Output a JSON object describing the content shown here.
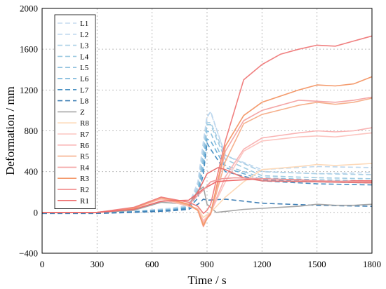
{
  "chart_data": {
    "type": "line",
    "title": "",
    "xlabel": "Time / s",
    "ylabel": "Deformation / mm",
    "xlim": [
      0,
      1800
    ],
    "ylim": [
      -400,
      2000
    ],
    "xticks": [
      "0",
      "300",
      "600",
      "900",
      "1200",
      "1500",
      "1800"
    ],
    "yticks": [
      "2000",
      "1600",
      "1200",
      "800",
      "400",
      "0",
      "−400"
    ],
    "grid": true,
    "legend_position": "top-left",
    "series": [
      {
        "name": "L1",
        "color": "#c6dbef",
        "dash": "dash",
        "x": [
          0,
          300,
          500,
          700,
          800,
          850,
          880,
          900,
          920,
          1000,
          1200,
          1500,
          1800
        ],
        "y": [
          -5,
          -5,
          10,
          40,
          70,
          300,
          700,
          950,
          980,
          560,
          400,
          380,
          390
        ]
      },
      {
        "name": "L2",
        "color": "#bdd7ee",
        "dash": "dash",
        "x": [
          0,
          300,
          500,
          700,
          800,
          850,
          880,
          900,
          920,
          1000,
          1200,
          1500,
          1800
        ],
        "y": [
          -5,
          -5,
          10,
          40,
          60,
          280,
          650,
          930,
          990,
          560,
          420,
          450,
          440
        ]
      },
      {
        "name": "L3",
        "color": "#abd0e6",
        "dash": "dash",
        "x": [
          0,
          300,
          500,
          700,
          800,
          850,
          880,
          900,
          920,
          1000,
          1200,
          1500,
          1800
        ],
        "y": [
          -5,
          -5,
          10,
          30,
          60,
          250,
          600,
          880,
          880,
          560,
          400,
          380,
          370
        ]
      },
      {
        "name": "L4",
        "color": "#9ecae1",
        "dash": "dash",
        "x": [
          0,
          300,
          500,
          700,
          800,
          850,
          880,
          900,
          920,
          1000,
          1200,
          1500,
          1800
        ],
        "y": [
          -5,
          -5,
          10,
          30,
          55,
          220,
          560,
          860,
          860,
          520,
          360,
          340,
          330
        ]
      },
      {
        "name": "L5",
        "color": "#8fc1de",
        "dash": "dash",
        "x": [
          0,
          300,
          500,
          700,
          800,
          850,
          880,
          900,
          920,
          1000,
          1200,
          1500,
          1800
        ],
        "y": [
          -5,
          -5,
          10,
          30,
          50,
          200,
          520,
          800,
          780,
          460,
          340,
          320,
          310
        ]
      },
      {
        "name": "L6",
        "color": "#6baed6",
        "dash": "dash",
        "x": [
          0,
          300,
          500,
          700,
          800,
          850,
          880,
          900,
          920,
          1000,
          1200,
          1500,
          1800
        ],
        "y": [
          -5,
          -5,
          5,
          25,
          50,
          180,
          450,
          720,
          700,
          440,
          320,
          300,
          290
        ]
      },
      {
        "name": "L7",
        "color": "#4a90c2",
        "dash": "dash",
        "x": [
          0,
          300,
          500,
          700,
          800,
          850,
          880,
          900,
          920,
          1000,
          1200,
          1500,
          1800
        ],
        "y": [
          -5,
          -5,
          5,
          20,
          40,
          140,
          380,
          680,
          620,
          400,
          310,
          280,
          270
        ]
      },
      {
        "name": "L8",
        "color": "#3f7fb5",
        "dash": "dash",
        "x": [
          0,
          300,
          500,
          700,
          800,
          850,
          880,
          900,
          1000,
          1200,
          1500,
          1800
        ],
        "y": [
          -10,
          -10,
          0,
          15,
          30,
          80,
          130,
          120,
          130,
          90,
          70,
          60
        ]
      },
      {
        "name": "Z",
        "color": "#a6a6a6",
        "dash": "solid",
        "x": [
          0,
          300,
          500,
          650,
          800,
          850,
          880,
          900,
          950,
          1000,
          1100,
          1200,
          1400,
          1500,
          1600,
          1700,
          1800
        ],
        "y": [
          0,
          0,
          20,
          100,
          80,
          210,
          250,
          80,
          0,
          10,
          30,
          40,
          60,
          80,
          70,
          70,
          80
        ]
      },
      {
        "name": "R8",
        "color": "#fdd9b8",
        "dash": "solid",
        "x": [
          0,
          300,
          500,
          650,
          800,
          850,
          880,
          900,
          920,
          1000,
          1100,
          1200,
          1400,
          1500,
          1600,
          1700,
          1800
        ],
        "y": [
          0,
          0,
          40,
          130,
          60,
          40,
          -50,
          -20,
          0,
          150,
          300,
          420,
          450,
          470,
          460,
          470,
          480
        ]
      },
      {
        "name": "R7",
        "color": "#fcc5c0",
        "dash": "solid",
        "x": [
          0,
          300,
          500,
          650,
          800,
          850,
          880,
          900,
          920,
          1000,
          1100,
          1200,
          1400,
          1500,
          1600,
          1700,
          1800
        ],
        "y": [
          0,
          0,
          40,
          130,
          60,
          30,
          -80,
          -40,
          0,
          300,
          600,
          700,
          740,
          750,
          740,
          760,
          780
        ]
      },
      {
        "name": "R6",
        "color": "#f9b3b3",
        "dash": "solid",
        "x": [
          0,
          300,
          500,
          650,
          800,
          850,
          880,
          900,
          920,
          1000,
          1100,
          1200,
          1400,
          1500,
          1600,
          1700,
          1800
        ],
        "y": [
          0,
          0,
          40,
          140,
          70,
          30,
          -100,
          -50,
          0,
          350,
          620,
          730,
          780,
          800,
          790,
          800,
          830
        ]
      },
      {
        "name": "R5",
        "color": "#f6b08c",
        "dash": "solid",
        "x": [
          0,
          300,
          500,
          650,
          800,
          850,
          880,
          900,
          920,
          1000,
          1100,
          1200,
          1400,
          1500,
          1600,
          1700,
          1800
        ],
        "y": [
          0,
          0,
          40,
          140,
          70,
          20,
          -120,
          -60,
          -10,
          500,
          870,
          960,
          1050,
          1080,
          1060,
          1080,
          1120
        ]
      },
      {
        "name": "R4",
        "color": "#f4a6a6",
        "dash": "solid",
        "x": [
          0,
          300,
          500,
          650,
          800,
          850,
          880,
          900,
          920,
          1000,
          1100,
          1200,
          1400,
          1500,
          1600,
          1700,
          1800
        ],
        "y": [
          0,
          0,
          40,
          150,
          80,
          20,
          -140,
          -60,
          -20,
          600,
          900,
          1000,
          1100,
          1090,
          1080,
          1100,
          1130
        ]
      },
      {
        "name": "R3",
        "color": "#f49a6c",
        "dash": "solid",
        "x": [
          0,
          300,
          500,
          650,
          800,
          850,
          880,
          900,
          920,
          1000,
          1100,
          1200,
          1400,
          1500,
          1600,
          1700,
          1800
        ],
        "y": [
          0,
          0,
          40,
          150,
          80,
          20,
          -130,
          -60,
          -10,
          650,
          950,
          1080,
          1200,
          1250,
          1240,
          1260,
          1330
        ]
      },
      {
        "name": "R2",
        "color": "#f08080",
        "dash": "solid",
        "x": [
          0,
          300,
          500,
          650,
          800,
          850,
          880,
          900,
          920,
          1000,
          1100,
          1200,
          1300,
          1400,
          1500,
          1600,
          1700,
          1800
        ],
        "y": [
          0,
          0,
          50,
          150,
          100,
          60,
          -10,
          20,
          80,
          700,
          1300,
          1450,
          1550,
          1600,
          1640,
          1630,
          1680,
          1730
        ]
      },
      {
        "name": "R1",
        "color": "#ee6a6a",
        "dash": "solid",
        "x": [
          0,
          300,
          500,
          650,
          800,
          880,
          950,
          1000,
          1100,
          1200,
          1400,
          1500,
          1600,
          1700,
          1800
        ],
        "y": [
          0,
          0,
          30,
          110,
          120,
          230,
          300,
          310,
          320,
          330,
          320,
          310,
          300,
          310,
          310
        ]
      },
      {
        "color": "#e57373",
        "dash": "solid",
        "x": [
          800,
          850,
          900,
          960,
          1000,
          1100,
          1200,
          1500,
          1800
        ],
        "y": [
          60,
          200,
          380,
          440,
          420,
          340,
          310,
          300,
          290
        ]
      },
      {
        "color": "#ef9a9a",
        "dash": "solid",
        "x": [
          800,
          880,
          920,
          980,
          1050,
          1200,
          1500,
          1800
        ],
        "y": [
          80,
          220,
          300,
          330,
          340,
          330,
          310,
          300
        ]
      }
    ]
  }
}
